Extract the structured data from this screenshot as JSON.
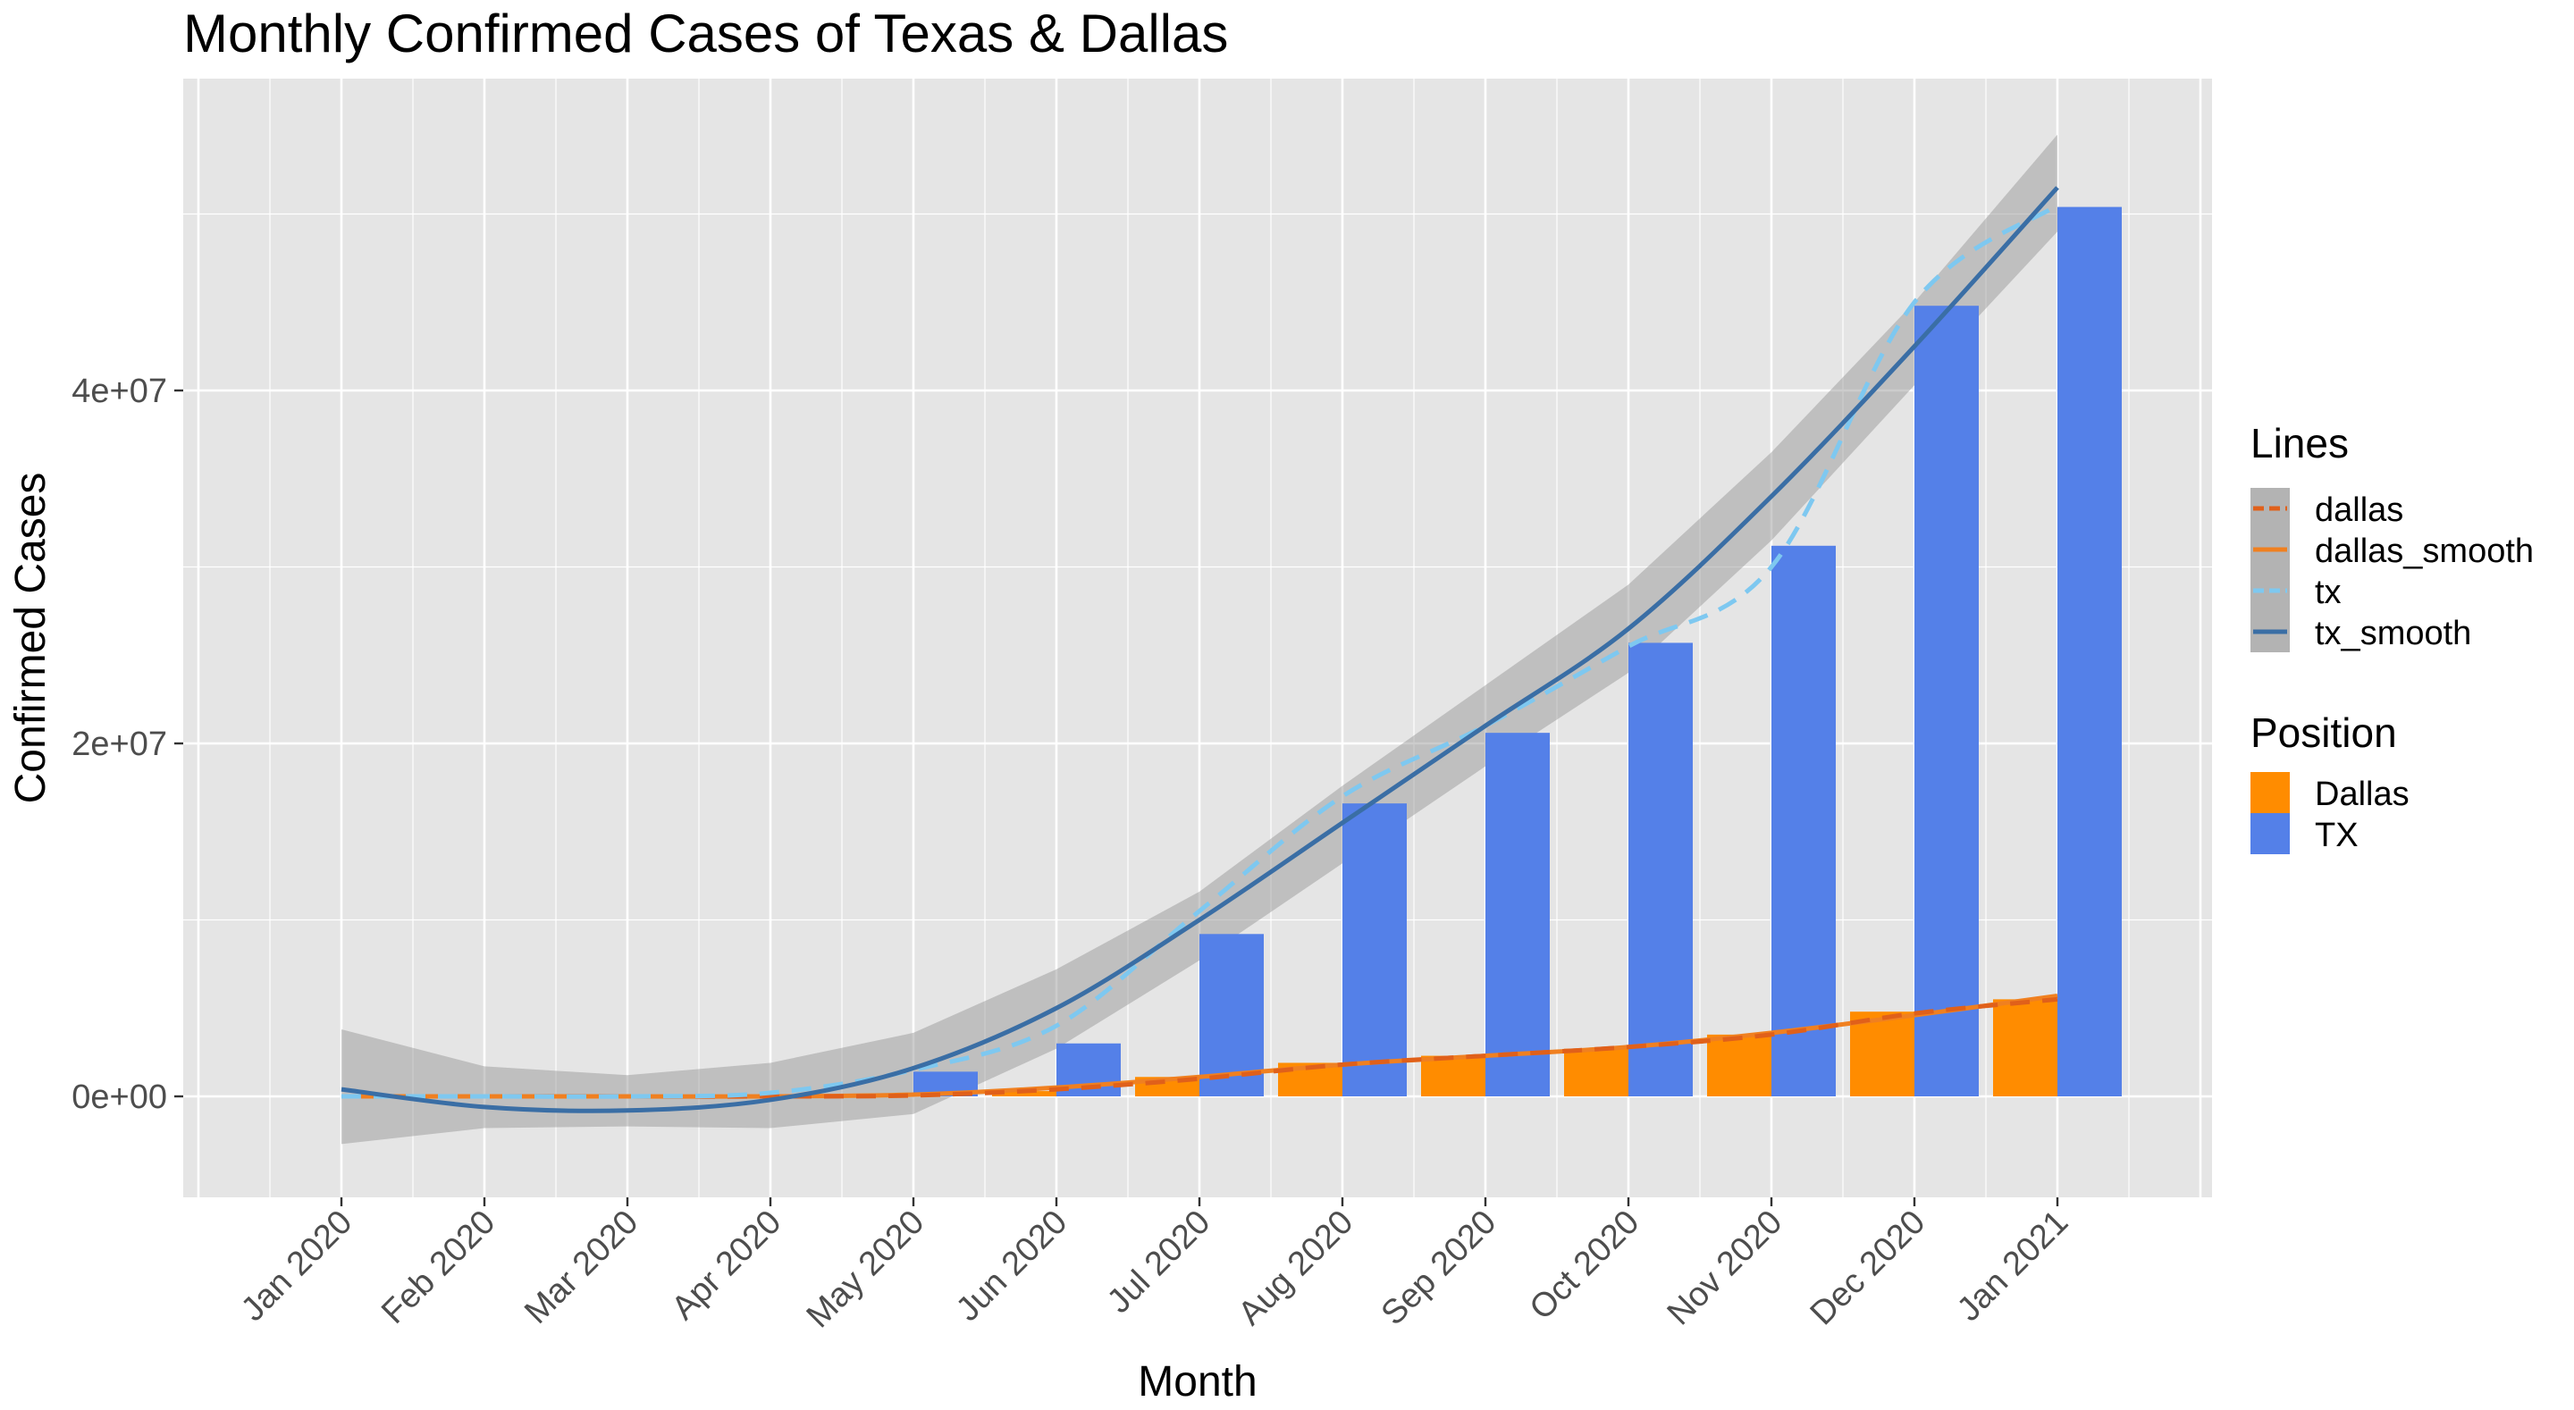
{
  "chart_data": {
    "type": "bar",
    "title": "Monthly Confirmed Cases of Texas & Dallas",
    "xlabel": "Month",
    "ylabel": "Confirmed Cases",
    "categories": [
      "Jan 2020",
      "Feb 2020",
      "Mar 2020",
      "Apr 2020",
      "May 2020",
      "Jun 2020",
      "Jul 2020",
      "Aug 2020",
      "Sep 2020",
      "Oct 2020",
      "Nov 2020",
      "Dec 2020",
      "Jan 2021"
    ],
    "y_ticks": [
      {
        "value": 0,
        "label": "0e+00"
      },
      {
        "value": 20000000,
        "label": "2e+07"
      },
      {
        "value": 40000000,
        "label": "4e+07"
      }
    ],
    "ylim": [
      -5500000,
      57500000
    ],
    "grid": true,
    "bar_series": [
      {
        "name": "Dallas",
        "color": "#FF8C00",
        "values": [
          0,
          0,
          0,
          0,
          0,
          300000,
          1100000,
          1900000,
          2300000,
          2700000,
          3500000,
          4800000,
          5500000
        ]
      },
      {
        "name": "TX",
        "color": "#5480E8",
        "values": [
          0,
          0,
          0,
          0,
          1400000,
          3000000,
          9200000,
          16600000,
          20600000,
          25700000,
          31200000,
          44800000,
          50400000
        ]
      }
    ],
    "line_series": [
      {
        "name": "dallas",
        "color": "#E0601A",
        "style": "dashed",
        "values": [
          0,
          0,
          0,
          0,
          50000,
          400000,
          1000000,
          1800000,
          2300000,
          2800000,
          3500000,
          4700000,
          5500000
        ]
      },
      {
        "name": "dallas_smooth",
        "color": "#F08020",
        "style": "solid",
        "values": [
          0,
          0,
          0,
          0,
          100000,
          500000,
          1100000,
          1800000,
          2300000,
          2800000,
          3600000,
          4600000,
          5700000
        ]
      },
      {
        "name": "tx",
        "color": "#7EC8F0",
        "style": "dashed",
        "values": [
          0,
          0,
          0,
          200000,
          1500000,
          4000000,
          10500000,
          17000000,
          21000000,
          25500000,
          30000000,
          45000000,
          50500000
        ]
      },
      {
        "name": "tx_smooth",
        "color": "#3A6EA5",
        "style": "solid",
        "values": [
          400000,
          -600000,
          -800000,
          -200000,
          1600000,
          5000000,
          10000000,
          15500000,
          21000000,
          26500000,
          34000000,
          42500000,
          51500000
        ],
        "ci_lower": [
          -2700000,
          -1800000,
          -1700000,
          -1800000,
          -1000000,
          2700000,
          7700000,
          13200000,
          18700000,
          24000000,
          31500000,
          40300000,
          49000000
        ],
        "ci_upper": [
          3800000,
          1700000,
          1200000,
          1900000,
          3600000,
          7200000,
          11600000,
          17600000,
          23300000,
          29000000,
          36500000,
          45000000,
          54500000
        ]
      }
    ],
    "legend": {
      "placement": "right",
      "lines_title": "Lines",
      "position_title": "Position"
    }
  }
}
